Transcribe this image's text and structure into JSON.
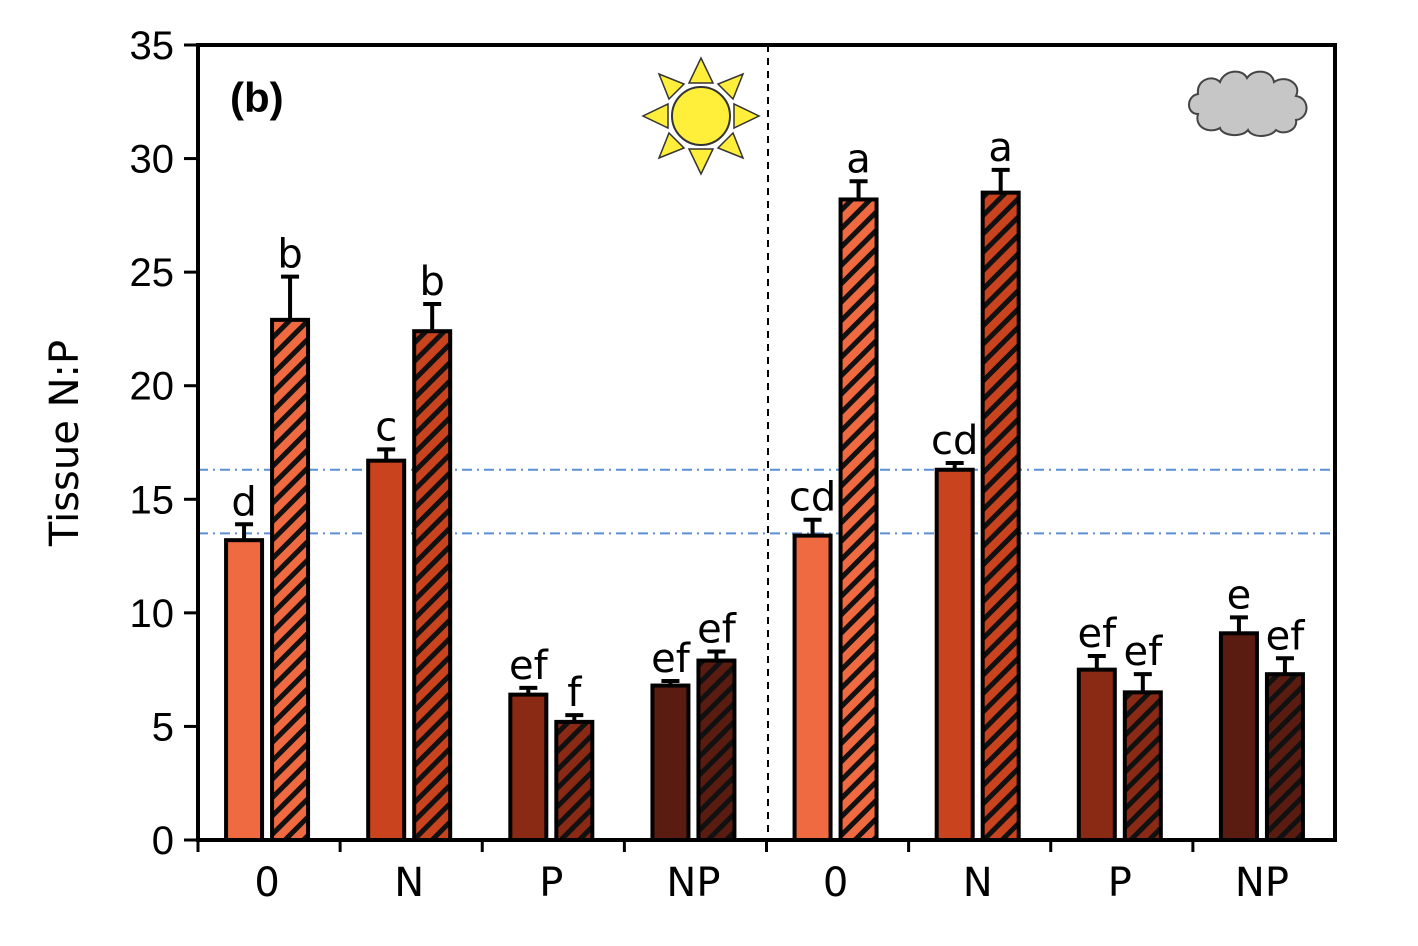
{
  "chart_data": {
    "type": "bar",
    "panel_label": "(b)",
    "ylabel": "Tissue N:P",
    "xlabel": "",
    "ylim": [
      0,
      35
    ],
    "yticks": [
      0,
      5,
      10,
      15,
      20,
      25,
      30,
      35
    ],
    "categories": [
      "0",
      "N",
      "P",
      "NP",
      "0",
      "N",
      "P",
      "NP"
    ],
    "groups": [
      {
        "condition_icon": "sun-icon",
        "categories": [
          "0",
          "N",
          "P",
          "NP"
        ]
      },
      {
        "condition_icon": "cloud-icon",
        "categories": [
          "0",
          "N",
          "P",
          "NP"
        ]
      }
    ],
    "series": [
      {
        "pattern": "solid",
        "values": [
          13.2,
          16.7,
          6.4,
          6.8,
          13.4,
          16.3,
          7.5,
          9.1
        ],
        "errors": [
          0.7,
          0.5,
          0.3,
          0.2,
          0.7,
          0.3,
          0.6,
          0.7
        ],
        "labels": [
          "d",
          "c",
          "ef",
          "ef",
          "cd",
          "cd",
          "ef",
          "e"
        ]
      },
      {
        "pattern": "hatched",
        "values": [
          22.9,
          22.4,
          5.2,
          7.9,
          28.2,
          28.5,
          6.5,
          7.3
        ],
        "errors": [
          1.9,
          1.2,
          0.3,
          0.4,
          0.8,
          1.0,
          0.8,
          0.7
        ],
        "labels": [
          "b",
          "b",
          "f",
          "ef",
          "a",
          "a",
          "ef",
          "ef"
        ]
      }
    ],
    "category_colors": [
      "#ef6a40",
      "#c9431e",
      "#8a2a14",
      "#5a1c10",
      "#ef6a40",
      "#c9431e",
      "#8a2a14",
      "#5a1c10"
    ],
    "reference_lines": [
      16.3,
      13.5
    ],
    "reference_line_color": "#5b8fd6",
    "grid": false,
    "legend": "none"
  }
}
